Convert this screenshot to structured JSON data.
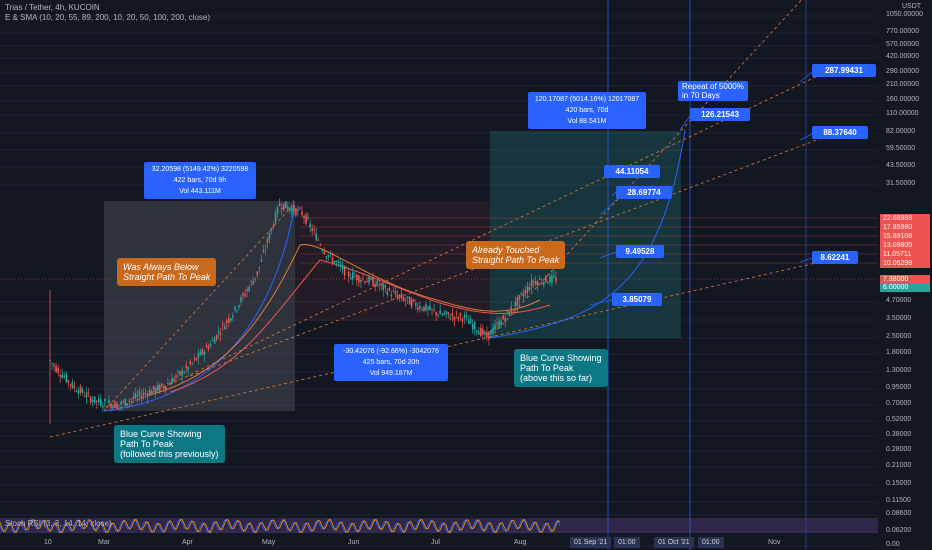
{
  "header": {
    "title": "Trias / Tether, 4h, KUCOIN",
    "indicator": "E & SMA (10, 20, 55, 89, 200, 10, 20, 50, 100, 200, close)"
  },
  "chart_data": {
    "type": "candlestick",
    "symbol": "Trias / Tether",
    "interval": "4h",
    "exchange": "KUCOIN",
    "quote_unit": "USDT",
    "y_scale": "log",
    "y_ticks": [
      "1050.00000",
      "770.00000",
      "570.00000",
      "420.00000",
      "290.00000",
      "210.00000",
      "160.00000",
      "110.00000",
      "82.00000",
      "59.50000",
      "43.50000",
      "31.50000",
      "4.70000",
      "3.50000",
      "2.50000",
      "1.80000",
      "1.30000",
      "0.95000",
      "0.70000",
      "0.52000",
      "0.38000",
      "0.28000",
      "0.21000",
      "0.15000",
      "0.11500",
      "0.08600",
      "0.06200",
      "0.00"
    ],
    "y_price_tags": [
      {
        "label": "22.68988",
        "color": "#ef5350"
      },
      {
        "label": "17.85980",
        "color": "#ef5350"
      },
      {
        "label": "15.89108",
        "color": "#ef5350"
      },
      {
        "label": "13.09805",
        "color": "#ef5350"
      },
      {
        "label": "11.05711",
        "color": "#ef5350"
      },
      {
        "label": "10.05298",
        "color": "#ef5350"
      },
      {
        "label": "7.38000",
        "color": "#ef5350"
      },
      {
        "label": "6.00000",
        "color": "#26a69a"
      }
    ],
    "x_ticks": [
      "10",
      "Mar",
      "Apr",
      "May",
      "Jun",
      "Jul",
      "Aug",
      "Nov"
    ],
    "x_highlight_ticks": [
      "01 Sep '21",
      "01:00",
      "01 Oct '21",
      "01:00"
    ],
    "measure_boxes": [
      {
        "line1": "32.20598 (5149.42%) 3220598",
        "line2": "422 bars, 70d 9h",
        "line3": "Vol 443.111M"
      },
      {
        "line1": "-30.42076 (-92.66%) -3042076",
        "line2": "425 bars, 70d 20h",
        "line3": "Vol 949.187M"
      },
      {
        "line1": "120.17087 (5014.16%) 12017087",
        "line2": "420 bars, 70d",
        "line3": "Vol 88.541M"
      }
    ],
    "target_labels": [
      "287.99431",
      "126.21543",
      "88.37640",
      "44.11054",
      "28.69774",
      "9.49528",
      "8.62241",
      "3.85079"
    ],
    "annotations": {
      "repeat": "Repeat of 5000%\nin 70 Days",
      "was_below": "Was Always Below\nStraight Path To Peak",
      "already_touched": "Already Touched\nStraight Path To Peak",
      "blue_curve_above": "Blue Curve Showing\nPath To Peak\n(above this so far)",
      "blue_curve_followed": "Blue Curve Showing\nPath To Peak\n(followed this previously)"
    },
    "price_path": [
      {
        "date": "Feb 5",
        "close": 1.6
      },
      {
        "date": "Feb 15",
        "close": 1.0
      },
      {
        "date": "Feb 25",
        "close": 0.75
      },
      {
        "date": "Mar 1",
        "close": 0.7
      },
      {
        "date": "Mar 10",
        "close": 0.85
      },
      {
        "date": "Mar 20",
        "close": 1.0
      },
      {
        "date": "Apr 1",
        "close": 1.4
      },
      {
        "date": "Apr 10",
        "close": 2.2
      },
      {
        "date": "Apr 20",
        "close": 4.0
      },
      {
        "date": "May 1",
        "close": 8.0
      },
      {
        "date": "May 8",
        "close": 30.0
      },
      {
        "date": "May 12",
        "close": 25.0
      },
      {
        "date": "May 18",
        "close": 12.0
      },
      {
        "date": "May 25",
        "close": 8.0
      },
      {
        "date": "Jun 1",
        "close": 7.0
      },
      {
        "date": "Jun 10",
        "close": 5.5
      },
      {
        "date": "Jun 20",
        "close": 4.5
      },
      {
        "date": "Jul 1",
        "close": 3.8
      },
      {
        "date": "Jul 10",
        "close": 3.6
      },
      {
        "date": "Jul 20",
        "close": 2.5
      },
      {
        "date": "Aug 1",
        "close": 4.0
      },
      {
        "date": "Aug 10",
        "close": 7.0
      },
      {
        "date": "Aug 15",
        "close": 7.38
      }
    ],
    "rsi_label": "Stoch RSI (3, 3, 14, 14, close)"
  }
}
